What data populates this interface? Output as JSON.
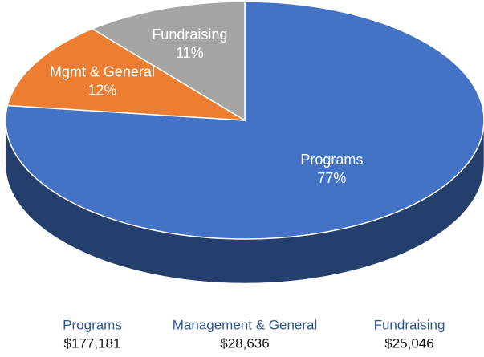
{
  "chart_data": {
    "type": "pie3d",
    "categories": [
      "Programs",
      "Mgmt & General",
      "Fundraising"
    ],
    "values": [
      77,
      12,
      11
    ],
    "value_labels": [
      "77%",
      "12%",
      "11%"
    ],
    "colors": [
      "#4472c4",
      "#ed7d31",
      "#a5a5a5"
    ],
    "legend": {
      "labels": [
        "Programs",
        "Management & General",
        "Fundraising"
      ],
      "amounts": [
        177181,
        28636,
        25046
      ],
      "amount_labels": [
        "$177,181",
        "$28,636",
        "$25,046"
      ]
    }
  }
}
